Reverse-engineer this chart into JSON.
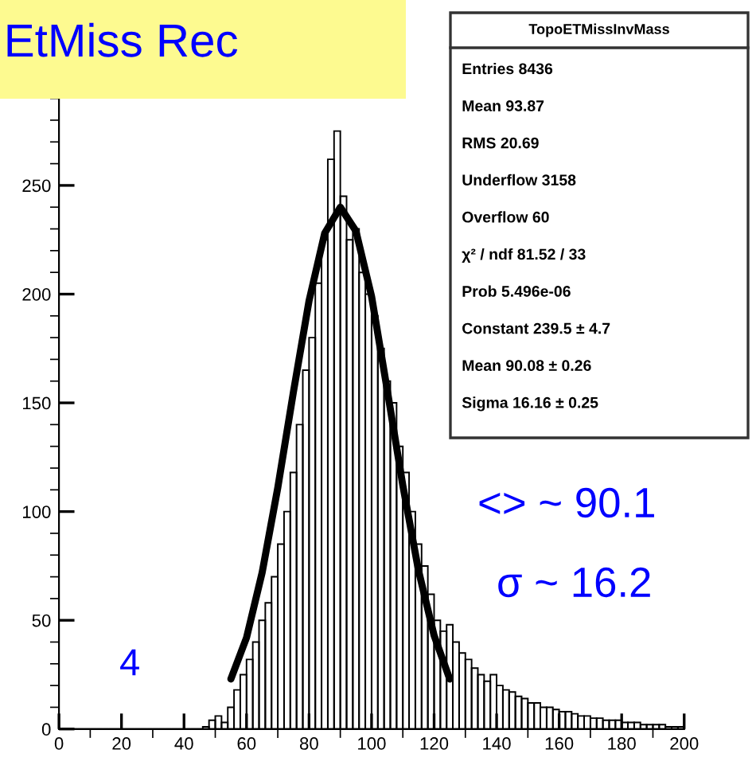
{
  "chart_data": {
    "type": "histogram",
    "title": "EtMiss Rec",
    "bins": [
      0,
      2,
      4,
      6,
      8,
      10,
      12,
      14,
      16,
      18,
      20,
      22,
      24,
      26,
      28,
      30,
      32,
      34,
      36,
      38,
      40,
      42,
      44,
      46,
      48,
      50,
      52,
      54,
      56,
      58,
      60,
      62,
      64,
      66,
      68,
      70,
      72,
      74,
      76,
      78,
      80,
      82,
      84,
      86,
      88,
      90,
      92,
      94,
      96,
      98,
      100,
      102,
      104,
      106,
      108,
      110,
      112,
      114,
      116,
      118,
      120,
      122,
      124,
      126,
      128,
      130,
      132,
      134,
      136,
      138,
      140,
      142,
      144,
      146,
      148,
      150,
      152,
      154,
      156,
      158,
      160,
      162,
      164,
      166,
      168,
      170,
      172,
      174,
      176,
      178,
      180,
      182,
      184,
      186,
      188,
      190,
      192,
      194,
      196,
      198,
      200
    ],
    "series": [
      {
        "type": "histogram",
        "color": "#000000",
        "values": [
          0,
          0,
          0,
          0,
          0,
          0,
          0,
          0,
          0,
          0,
          0,
          0,
          0,
          0,
          0,
          0,
          0,
          0,
          0,
          0,
          0,
          0,
          0,
          1,
          4,
          6,
          3,
          10,
          18,
          25,
          32,
          40,
          50,
          58,
          70,
          85,
          100,
          118,
          140,
          165,
          180,
          205,
          225,
          262,
          275,
          245,
          225,
          230,
          210,
          200,
          190,
          175,
          160,
          150,
          130,
          118,
          100,
          85,
          75,
          62,
          50,
          45,
          48,
          40,
          35,
          32,
          28,
          25,
          22,
          25,
          20,
          18,
          17,
          15,
          14,
          12,
          12,
          10,
          10,
          9,
          8,
          8,
          7,
          6,
          6,
          5,
          5,
          4,
          4,
          4,
          3,
          3,
          3,
          2,
          2,
          2,
          2,
          1,
          1,
          1
        ]
      },
      {
        "type": "line",
        "color": "#000000",
        "x": [
          55,
          60,
          65,
          70,
          75,
          80,
          85,
          90,
          95,
          100,
          105,
          110,
          115,
          120,
          125
        ],
        "values": [
          23,
          42,
          72,
          111,
          155,
          197,
          228,
          240,
          229,
          199,
          156,
          112,
          73,
          43,
          23
        ]
      }
    ],
    "xlim": [
      0,
      200
    ],
    "xticks": [
      0,
      20,
      40,
      60,
      80,
      100,
      120,
      140,
      160,
      180,
      200
    ],
    "ylim": [
      0,
      290
    ],
    "yticks": [
      0,
      50,
      100,
      150,
      200,
      250
    ],
    "grid": false,
    "legend": false,
    "annotations": [
      "TopoETMissInvMass",
      "Entries 8436",
      "Mean 93.87",
      "RMS 20.69",
      "Underflow 3158",
      "Overflow 60",
      "χ² / ndf 81.52 / 33",
      "Prob 5.496e-06",
      "Constant 239.5 ± 4.7",
      "Mean 90.08 ± 0.26",
      "Sigma 16.16 ± 0.25",
      "<> ~ 90.1",
      "σ ~ 16.2",
      "4"
    ]
  }
}
